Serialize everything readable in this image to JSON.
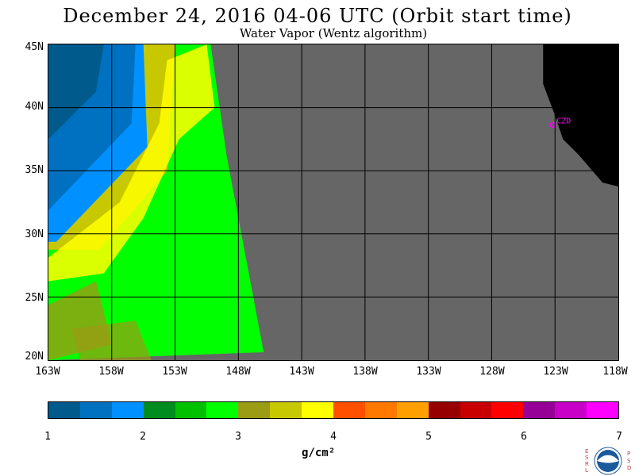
{
  "title": "December 24, 2016  04-06 UTC  (Orbit start time)",
  "subtitle": "Water Vapor (Wentz algorithm)",
  "lat_labels": [
    "45N",
    "40N",
    "35N",
    "30N",
    "25N",
    "20N"
  ],
  "lon_labels": [
    "163W",
    "158W",
    "153W",
    "148W",
    "143W",
    "138W",
    "133W",
    "128W",
    "123W",
    "118W"
  ],
  "station_label": "CZD",
  "colorbar": {
    "ticks": [
      "1",
      "2",
      "3",
      "4",
      "5",
      "6",
      "7"
    ],
    "unit": "g/cm²",
    "colors": [
      "#005a8c",
      "#0070c0",
      "#0090ff",
      "#008c1e",
      "#00c000",
      "#00ff00",
      "#9b9b14",
      "#c8c800",
      "#ffff00",
      "#ff5000",
      "#ff7800",
      "#ffa000",
      "#960000",
      "#c80000",
      "#ff0000",
      "#960096",
      "#c800c8",
      "#ff00ff"
    ]
  },
  "logo": {
    "left_letters": "ESRL",
    "right_letters": "PSD",
    "center": "NOAA"
  }
}
